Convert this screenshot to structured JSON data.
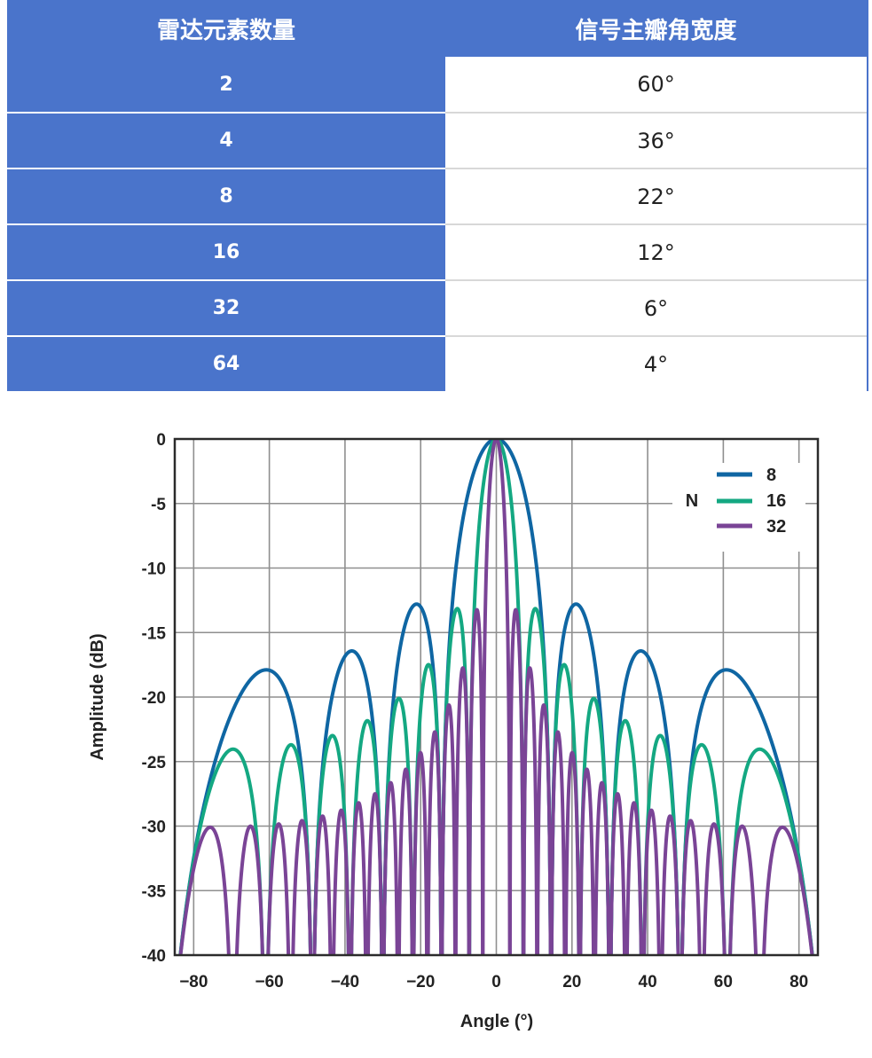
{
  "table": {
    "headers": [
      "雷达元素数量",
      "信号主瓣角宽度"
    ],
    "rows": [
      {
        "elements": "2",
        "width": "60°"
      },
      {
        "elements": "4",
        "width": "36°"
      },
      {
        "elements": "8",
        "width": "22°"
      },
      {
        "elements": "16",
        "width": "12°"
      },
      {
        "elements": "32",
        "width": "6°"
      },
      {
        "elements": "64",
        "width": "4°"
      }
    ],
    "colors": {
      "header_bg": "#4a74cb",
      "left_bg": "#4a74cb",
      "right_bg": "#ffffff"
    }
  },
  "chart_data": {
    "type": "line",
    "title": "",
    "xlabel": "Angle (°)",
    "ylabel": "Amplitude (dB)",
    "xlim": [
      -85,
      85
    ],
    "ylim": [
      -40,
      0
    ],
    "xticks": [
      -80,
      -60,
      -40,
      -20,
      0,
      20,
      40,
      60,
      80
    ],
    "yticks": [
      0,
      -5,
      -10,
      -15,
      -20,
      -25,
      -30,
      -35,
      -40
    ],
    "xtick_labels": [
      "−80",
      "−60",
      "−40",
      "−20",
      "0",
      "20",
      "40",
      "60",
      "80"
    ],
    "ytick_labels": [
      "0",
      "-5",
      "-10",
      "-15",
      "-20",
      "-25",
      "-30",
      "-35",
      "-40"
    ],
    "grid": true,
    "legend": {
      "title": "N",
      "placement": "top-right"
    },
    "formula": "uniform linear array, half-wavelength spacing: 20*log10(|sin(N*pi/2*sin(theta)) / (N*sin(pi/2*sin(theta)))|)",
    "series": [
      {
        "name": "8",
        "N": 8,
        "color": "#0f66a3",
        "peaks": [
          {
            "x": 0,
            "y": 0
          },
          {
            "x": -21,
            "y": -12.8
          },
          {
            "x": 21,
            "y": -12.8
          },
          {
            "x": -38,
            "y": -16.5
          },
          {
            "x": 38,
            "y": -16.5
          },
          {
            "x": -61,
            "y": -17.9
          },
          {
            "x": 61,
            "y": -17.9
          }
        ]
      },
      {
        "name": "16",
        "N": 16,
        "color": "#14a882",
        "peaks": [
          {
            "x": 0,
            "y": 0
          },
          {
            "x": -10,
            "y": -13.1
          },
          {
            "x": 10,
            "y": -13.1
          },
          {
            "x": -17,
            "y": -17.6
          },
          {
            "x": 17,
            "y": -17.6
          },
          {
            "x": -26,
            "y": -20.2
          },
          {
            "x": 26,
            "y": -20.2
          },
          {
            "x": -69,
            "y": -24.1
          },
          {
            "x": 69,
            "y": -24.1
          }
        ]
      },
      {
        "name": "32",
        "N": 32,
        "color": "#7a4496",
        "peaks": [
          {
            "x": 0,
            "y": 0
          },
          {
            "x": -5,
            "y": -13.2
          },
          {
            "x": 5,
            "y": -13.2
          },
          {
            "x": -76,
            "y": -30
          },
          {
            "x": 76,
            "y": -30
          }
        ]
      }
    ]
  }
}
